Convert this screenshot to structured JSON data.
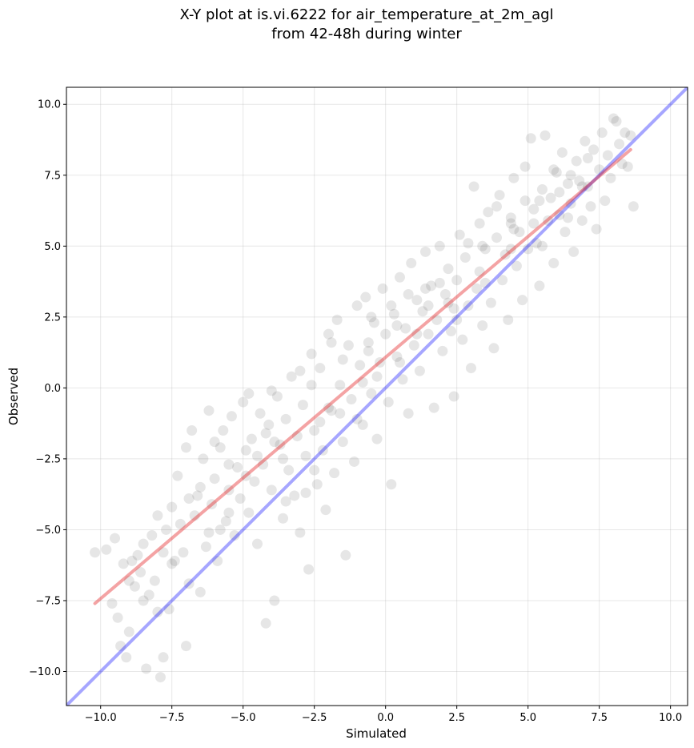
{
  "chart_data": {
    "type": "scatter",
    "title": "X-Y plot at is.vi.6222 for air_temperature_at_2m_agl",
    "subtitle": "from 42-48h during winter",
    "xlabel": "Simulated",
    "ylabel": "Observed",
    "xlim": [
      -11.2,
      10.6
    ],
    "ylim": [
      -11.2,
      10.6
    ],
    "grid": true,
    "x_ticks": [
      "−10.0",
      "−7.5",
      "−5.0",
      "−2.5",
      "0.0",
      "2.5",
      "5.0",
      "7.5",
      "10.0"
    ],
    "y_ticks": [
      "−10.0",
      "−7.5",
      "−5.0",
      "−2.5",
      "0.0",
      "2.5",
      "5.0",
      "7.5",
      "10.0"
    ],
    "tick_values": [
      -10,
      -7.5,
      -5,
      -2.5,
      0,
      2.5,
      5,
      7.5,
      10
    ],
    "series": [
      {
        "kind": "scatter",
        "color": "#333333",
        "opacity": 0.12,
        "points": [
          [
            -10.2,
            -5.8
          ],
          [
            -9.8,
            -5.7
          ],
          [
            -9.6,
            -7.6
          ],
          [
            -9.5,
            -5.3
          ],
          [
            -9.4,
            -8.1
          ],
          [
            -9.3,
            -9.1
          ],
          [
            -9.2,
            -6.2
          ],
          [
            -9.1,
            -9.5
          ],
          [
            -9.0,
            -8.6
          ],
          [
            -8.9,
            -6.1
          ],
          [
            -8.8,
            -7.0
          ],
          [
            -8.7,
            -5.9
          ],
          [
            -8.6,
            -6.5
          ],
          [
            -8.5,
            -5.5
          ],
          [
            -8.4,
            -9.9
          ],
          [
            -8.3,
            -7.3
          ],
          [
            -8.2,
            -5.2
          ],
          [
            -8.1,
            -6.8
          ],
          [
            -8.0,
            -7.9
          ],
          [
            -7.9,
            -10.2
          ],
          [
            -7.8,
            -9.5
          ],
          [
            -7.7,
            -5.0
          ],
          [
            -7.6,
            -7.8
          ],
          [
            -7.5,
            -4.2
          ],
          [
            -7.4,
            -6.1
          ],
          [
            -7.3,
            -3.1
          ],
          [
            -7.2,
            -4.8
          ],
          [
            -7.1,
            -5.8
          ],
          [
            -7.0,
            -9.1
          ],
          [
            -6.9,
            -6.9
          ],
          [
            -6.8,
            -1.5
          ],
          [
            -6.7,
            -4.5
          ],
          [
            -6.6,
            -3.8
          ],
          [
            -6.5,
            -7.2
          ],
          [
            -6.4,
            -2.5
          ],
          [
            -6.3,
            -5.6
          ],
          [
            -6.2,
            -0.8
          ],
          [
            -6.1,
            -4.1
          ],
          [
            -6.0,
            -3.2
          ],
          [
            -5.9,
            -6.1
          ],
          [
            -5.8,
            -2.1
          ],
          [
            -5.7,
            -1.5
          ],
          [
            -5.6,
            -4.7
          ],
          [
            -5.5,
            -3.6
          ],
          [
            -5.4,
            -1.0
          ],
          [
            -5.3,
            -5.2
          ],
          [
            -5.2,
            -2.8
          ],
          [
            -5.1,
            -3.9
          ],
          [
            -5.0,
            -0.5
          ],
          [
            -4.9,
            -2.2
          ],
          [
            -4.8,
            -4.4
          ],
          [
            -4.7,
            -1.8
          ],
          [
            -4.6,
            -3.3
          ],
          [
            -4.5,
            -5.5
          ],
          [
            -4.4,
            -0.9
          ],
          [
            -4.3,
            -2.7
          ],
          [
            -4.2,
            -8.3
          ],
          [
            -4.1,
            -1.3
          ],
          [
            -4.0,
            -3.6
          ],
          [
            -3.9,
            -7.5
          ],
          [
            -3.8,
            -0.3
          ],
          [
            -3.7,
            -2.0
          ],
          [
            -3.6,
            -4.6
          ],
          [
            -3.5,
            -1.1
          ],
          [
            -3.4,
            -2.9
          ],
          [
            -3.3,
            0.4
          ],
          [
            -3.2,
            -3.8
          ],
          [
            -3.1,
            -1.7
          ],
          [
            -3.0,
            -5.1
          ],
          [
            -2.9,
            -0.6
          ],
          [
            -2.8,
            -2.4
          ],
          [
            -2.7,
            -6.4
          ],
          [
            -2.6,
            1.2
          ],
          [
            -2.5,
            -1.5
          ],
          [
            -2.4,
            -3.4
          ],
          [
            -2.3,
            0.7
          ],
          [
            -2.2,
            -2.2
          ],
          [
            -2.1,
            -4.3
          ],
          [
            -2.0,
            1.9
          ],
          [
            -1.9,
            -0.8
          ],
          [
            -1.8,
            -3.0
          ],
          [
            -1.7,
            2.4
          ],
          [
            -1.6,
            0.1
          ],
          [
            -1.5,
            -1.9
          ],
          [
            -1.4,
            -5.9
          ],
          [
            -1.3,
            1.5
          ],
          [
            -1.2,
            -0.4
          ],
          [
            -1.1,
            -2.6
          ],
          [
            -1.0,
            2.9
          ],
          [
            -0.9,
            0.8
          ],
          [
            -0.8,
            -1.3
          ],
          [
            -0.7,
            3.2
          ],
          [
            -0.6,
            1.6
          ],
          [
            -0.5,
            -0.2
          ],
          [
            -0.4,
            2.3
          ],
          [
            -0.3,
            -1.8
          ],
          [
            -0.2,
            0.9
          ],
          [
            -0.1,
            3.5
          ],
          [
            0.0,
            1.9
          ],
          [
            0.1,
            -0.5
          ],
          [
            0.2,
            -3.4
          ],
          [
            0.3,
            2.6
          ],
          [
            0.4,
            1.1
          ],
          [
            0.5,
            3.9
          ],
          [
            0.6,
            0.3
          ],
          [
            0.7,
            2.1
          ],
          [
            0.8,
            -0.9
          ],
          [
            0.9,
            4.4
          ],
          [
            1.0,
            1.5
          ],
          [
            1.1,
            3.1
          ],
          [
            1.2,
            0.6
          ],
          [
            1.3,
            2.7
          ],
          [
            1.4,
            4.8
          ],
          [
            1.5,
            1.9
          ],
          [
            1.6,
            3.6
          ],
          [
            1.7,
            -0.7
          ],
          [
            1.8,
            2.4
          ],
          [
            1.9,
            5.0
          ],
          [
            2.0,
            1.3
          ],
          [
            2.1,
            3.3
          ],
          [
            2.2,
            4.2
          ],
          [
            2.3,
            2.0
          ],
          [
            2.4,
            -0.3
          ],
          [
            2.5,
            3.8
          ],
          [
            2.6,
            5.4
          ],
          [
            2.7,
            1.7
          ],
          [
            2.8,
            4.6
          ],
          [
            2.9,
            2.9
          ],
          [
            3.0,
            0.7
          ],
          [
            3.1,
            7.1
          ],
          [
            3.2,
            3.5
          ],
          [
            3.3,
            5.8
          ],
          [
            3.4,
            2.2
          ],
          [
            3.5,
            4.9
          ],
          [
            3.6,
            6.2
          ],
          [
            3.7,
            3.0
          ],
          [
            3.8,
            1.4
          ],
          [
            3.9,
            5.3
          ],
          [
            4.0,
            6.8
          ],
          [
            4.1,
            3.8
          ],
          [
            4.2,
            4.7
          ],
          [
            4.3,
            2.4
          ],
          [
            4.4,
            6.0
          ],
          [
            4.5,
            7.4
          ],
          [
            4.6,
            4.3
          ],
          [
            4.7,
            5.5
          ],
          [
            4.8,
            3.1
          ],
          [
            4.9,
            7.8
          ],
          [
            5.0,
            4.9
          ],
          [
            5.1,
            8.8
          ],
          [
            5.2,
            6.3
          ],
          [
            5.3,
            5.1
          ],
          [
            5.4,
            3.6
          ],
          [
            5.5,
            7.0
          ],
          [
            5.6,
            8.9
          ],
          [
            5.7,
            5.9
          ],
          [
            5.8,
            6.7
          ],
          [
            5.9,
            4.4
          ],
          [
            6.0,
            7.6
          ],
          [
            6.1,
            6.1
          ],
          [
            6.2,
            8.3
          ],
          [
            6.3,
            5.5
          ],
          [
            6.4,
            7.2
          ],
          [
            6.5,
            6.5
          ],
          [
            6.6,
            4.8
          ],
          [
            6.7,
            8.0
          ],
          [
            6.8,
            7.3
          ],
          [
            6.9,
            5.9
          ],
          [
            7.0,
            8.7
          ],
          [
            7.1,
            7.1
          ],
          [
            7.2,
            6.4
          ],
          [
            7.3,
            8.4
          ],
          [
            7.4,
            5.6
          ],
          [
            7.5,
            7.7
          ],
          [
            7.6,
            9.0
          ],
          [
            7.7,
            6.6
          ],
          [
            7.8,
            8.2
          ],
          [
            7.9,
            7.4
          ],
          [
            8.0,
            9.5
          ],
          [
            8.1,
            9.4
          ],
          [
            8.2,
            8.6
          ],
          [
            8.3,
            7.9
          ],
          [
            8.4,
            9.0
          ],
          [
            8.5,
            7.8
          ],
          [
            8.6,
            8.9
          ],
          [
            8.7,
            6.4
          ],
          [
            -7.0,
            -2.1
          ],
          [
            -6.5,
            -3.5
          ],
          [
            -6.0,
            -1.9
          ],
          [
            -5.5,
            -4.4
          ],
          [
            -4.5,
            -2.4
          ],
          [
            -4.0,
            -0.1
          ],
          [
            -3.5,
            -4.0
          ],
          [
            -3.0,
            0.6
          ],
          [
            -2.5,
            -2.9
          ],
          [
            -2.0,
            -0.7
          ],
          [
            -1.5,
            1.0
          ],
          [
            -1.0,
            -1.1
          ],
          [
            -0.5,
            2.5
          ],
          [
            0.5,
            0.9
          ],
          [
            1.5,
            2.9
          ],
          [
            2.5,
            2.4
          ],
          [
            3.5,
            3.7
          ],
          [
            4.5,
            5.6
          ],
          [
            5.5,
            5.0
          ],
          [
            6.5,
            7.5
          ],
          [
            -8.0,
            -4.5
          ],
          [
            -7.5,
            -6.2
          ],
          [
            -5.5,
            -2.7
          ],
          [
            -4.8,
            -0.2
          ],
          [
            -3.9,
            -1.9
          ],
          [
            -2.8,
            -3.7
          ],
          [
            -1.9,
            1.6
          ],
          [
            -0.8,
            0.2
          ],
          [
            0.2,
            2.9
          ],
          [
            1.1,
            1.9
          ],
          [
            2.2,
            3.0
          ],
          [
            3.3,
            4.1
          ],
          [
            4.4,
            4.9
          ],
          [
            5.2,
            5.8
          ],
          [
            6.1,
            6.9
          ],
          [
            6.9,
            7.1
          ],
          [
            -9.0,
            -6.8
          ],
          [
            -6.2,
            -5.1
          ],
          [
            -4.2,
            -1.6
          ],
          [
            -2.3,
            -1.2
          ],
          [
            -0.3,
            0.4
          ],
          [
            0.8,
            3.3
          ],
          [
            1.9,
            3.7
          ],
          [
            2.9,
            5.1
          ],
          [
            3.9,
            6.4
          ],
          [
            4.9,
            6.6
          ],
          [
            5.9,
            7.7
          ],
          [
            7.1,
            8.1
          ],
          [
            -8.5,
            -7.5
          ],
          [
            -7.8,
            -5.8
          ],
          [
            -6.9,
            -3.9
          ],
          [
            -5.8,
            -5.0
          ],
          [
            -4.9,
            -3.1
          ],
          [
            -3.6,
            -2.5
          ],
          [
            -2.6,
            0.1
          ],
          [
            -1.6,
            -0.9
          ],
          [
            -0.6,
            1.3
          ],
          [
            0.4,
            2.2
          ],
          [
            1.4,
            3.5
          ],
          [
            2.4,
            2.8
          ],
          [
            3.4,
            5.0
          ],
          [
            4.4,
            5.8
          ],
          [
            5.4,
            6.6
          ],
          [
            6.4,
            6.0
          ]
        ]
      },
      {
        "name": "",
        "kind": "line",
        "color": "#0000ff",
        "opacity": 0.35,
        "points": [
          [
            -11.2,
            -11.2
          ],
          [
            10.6,
            10.6
          ]
        ]
      },
      {
        "name": "",
        "kind": "line",
        "color": "#e41a1c",
        "opacity": 0.4,
        "points": [
          [
            -10.2,
            -7.6
          ],
          [
            8.6,
            8.4
          ]
        ]
      }
    ]
  }
}
